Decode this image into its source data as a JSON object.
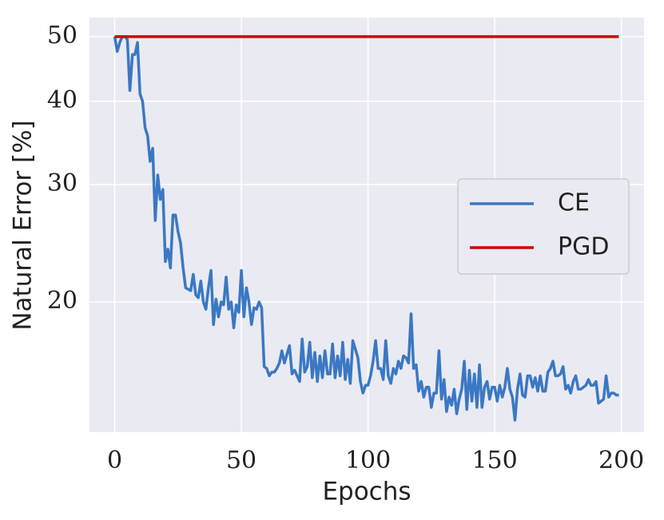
{
  "chart_data": {
    "type": "line",
    "xlabel": "Epochs",
    "ylabel": "Natural Error [%]",
    "log_y": true,
    "grid": true,
    "legend": "right",
    "xlim": [
      -9.95,
      208.95
    ],
    "xticks": [
      0,
      50,
      100,
      150,
      200
    ],
    "ylim": [
      12.76,
      53.4
    ],
    "yticks": [
      20,
      30,
      40,
      50
    ],
    "x": [
      0,
      1,
      2,
      3,
      4,
      5,
      6,
      7,
      8,
      9,
      10,
      11,
      12,
      13,
      14,
      15,
      16,
      17,
      18,
      19,
      20,
      21,
      22,
      23,
      24,
      25,
      26,
      27,
      28,
      29,
      30,
      31,
      32,
      33,
      34,
      35,
      36,
      37,
      38,
      39,
      40,
      41,
      42,
      43,
      44,
      45,
      46,
      47,
      48,
      49,
      50,
      51,
      52,
      53,
      54,
      55,
      56,
      57,
      58,
      59,
      60,
      61,
      62,
      63,
      64,
      65,
      66,
      67,
      68,
      69,
      70,
      71,
      72,
      73,
      74,
      75,
      76,
      77,
      78,
      79,
      80,
      81,
      82,
      83,
      84,
      85,
      86,
      87,
      88,
      89,
      90,
      91,
      92,
      93,
      94,
      95,
      96,
      97,
      98,
      99,
      100,
      101,
      102,
      103,
      104,
      105,
      106,
      107,
      108,
      109,
      110,
      111,
      112,
      113,
      114,
      115,
      116,
      117,
      118,
      119,
      120,
      121,
      122,
      123,
      124,
      125,
      126,
      127,
      128,
      129,
      130,
      131,
      132,
      133,
      134,
      135,
      136,
      137,
      138,
      139,
      140,
      141,
      142,
      143,
      144,
      145,
      146,
      147,
      148,
      149,
      150,
      151,
      152,
      153,
      154,
      155,
      156,
      157,
      158,
      159,
      160,
      161,
      162,
      163,
      164,
      165,
      166,
      167,
      168,
      169,
      170,
      171,
      172,
      173,
      174,
      175,
      176,
      177,
      178,
      179,
      180,
      181,
      182,
      183,
      184,
      185,
      186,
      187,
      188,
      189,
      190,
      191,
      192,
      193,
      194,
      195,
      196,
      197,
      198,
      199
    ],
    "series": [
      {
        "name": "CE",
        "color": "#3a78c3",
        "values": [
          50,
          47.5,
          49,
          50,
          50,
          49.5,
          41.5,
          47,
          47,
          49,
          41,
          40,
          36.5,
          35.5,
          32.5,
          34,
          26.5,
          31,
          28.5,
          29.5,
          23,
          24,
          22.5,
          27,
          27,
          25.5,
          24.5,
          22.5,
          21,
          20.9,
          20.8,
          22,
          20.5,
          20.3,
          21.5,
          20,
          19.5,
          21,
          22.3,
          18.5,
          20.2,
          19,
          20,
          19.8,
          21.8,
          19.5,
          20,
          18.3,
          19.8,
          19.3,
          22.3,
          19,
          21,
          20,
          18.5,
          19.6,
          19.5,
          20,
          19.6,
          16,
          15.9,
          15.5,
          15.7,
          15.7,
          15.9,
          16.2,
          16.9,
          16.2,
          16.7,
          17.2,
          15.6,
          15.8,
          15.5,
          15.2,
          17.6,
          15.7,
          16,
          17.4,
          15.4,
          16.8,
          15.2,
          16.6,
          15.4,
          16.9,
          15.6,
          15.6,
          17.3,
          15.4,
          16.6,
          15.5,
          17.4,
          15.3,
          16.4,
          15.1,
          17.5,
          17,
          16.5,
          15.2,
          14.6,
          15,
          15,
          15.5,
          16.3,
          17.5,
          15.9,
          15.9,
          15.3,
          17.5,
          15.5,
          15.1,
          15.9,
          15.6,
          16.3,
          15.9,
          16.6,
          16.5,
          16.2,
          19.2,
          15.9,
          16.1,
          14.7,
          15.2,
          14.4,
          14.9,
          14.9,
          13.9,
          14.6,
          14.6,
          16.9,
          14.3,
          15.3,
          13.7,
          14.4,
          14,
          14.8,
          13.6,
          14.3,
          14.8,
          16.3,
          13.8,
          15.8,
          14.2,
          15.6,
          13.9,
          16.1,
          13.9,
          14.9,
          15.2,
          14.3,
          14.9,
          14.9,
          14.2,
          15,
          14.4,
          14.9,
          15.9,
          14.8,
          14.4,
          13.3,
          14.8,
          15.6,
          14.5,
          14.4,
          15.5,
          15.5,
          14.9,
          15.4,
          14.7,
          15.5,
          14.7,
          14.7,
          15.7,
          15.9,
          16.3,
          15.5,
          15.5,
          15.6,
          16,
          14.8,
          15,
          14.6,
          15.2,
          15.5,
          14.8,
          14.8,
          14.9,
          15,
          15.3,
          15,
          15,
          15.2,
          14.1,
          14.2,
          14.3,
          15.5,
          14.4,
          14.6,
          14.6,
          14.5,
          14.5
        ]
      },
      {
        "name": "PGD",
        "color": "#d40000",
        "values": [
          50,
          50,
          50,
          50,
          50,
          50,
          50,
          50,
          50,
          50,
          50,
          50,
          50,
          50,
          50,
          50,
          50,
          50,
          50,
          50,
          50,
          50,
          50,
          50,
          50,
          50,
          50,
          50,
          50,
          50,
          50,
          50,
          50,
          50,
          50,
          50,
          50,
          50,
          50,
          50,
          50,
          50,
          50,
          50,
          50,
          50,
          50,
          50,
          50,
          50,
          50,
          50,
          50,
          50,
          50,
          50,
          50,
          50,
          50,
          50,
          50,
          50,
          50,
          50,
          50,
          50,
          50,
          50,
          50,
          50,
          50,
          50,
          50,
          50,
          50,
          50,
          50,
          50,
          50,
          50,
          50,
          50,
          50,
          50,
          50,
          50,
          50,
          50,
          50,
          50,
          50,
          50,
          50,
          50,
          50,
          50,
          50,
          50,
          50,
          50,
          50,
          50,
          50,
          50,
          50,
          50,
          50,
          50,
          50,
          50,
          50,
          50,
          50,
          50,
          50,
          50,
          50,
          50,
          50,
          50,
          50,
          50,
          50,
          50,
          50,
          50,
          50,
          50,
          50,
          50,
          50,
          50,
          50,
          50,
          50,
          50,
          50,
          50,
          50,
          50,
          50,
          50,
          50,
          50,
          50,
          50,
          50,
          50,
          50,
          50,
          50,
          50,
          50,
          50,
          50,
          50,
          50,
          50,
          50,
          50,
          50,
          50,
          50,
          50,
          50,
          50,
          50,
          50,
          50,
          50,
          50,
          50,
          50,
          50,
          50,
          50,
          50,
          50,
          50,
          50,
          50,
          50,
          50,
          50,
          50,
          50,
          50,
          50,
          50,
          50,
          50,
          50,
          50,
          50,
          50,
          50,
          50,
          50,
          50,
          50
        ]
      }
    ]
  }
}
